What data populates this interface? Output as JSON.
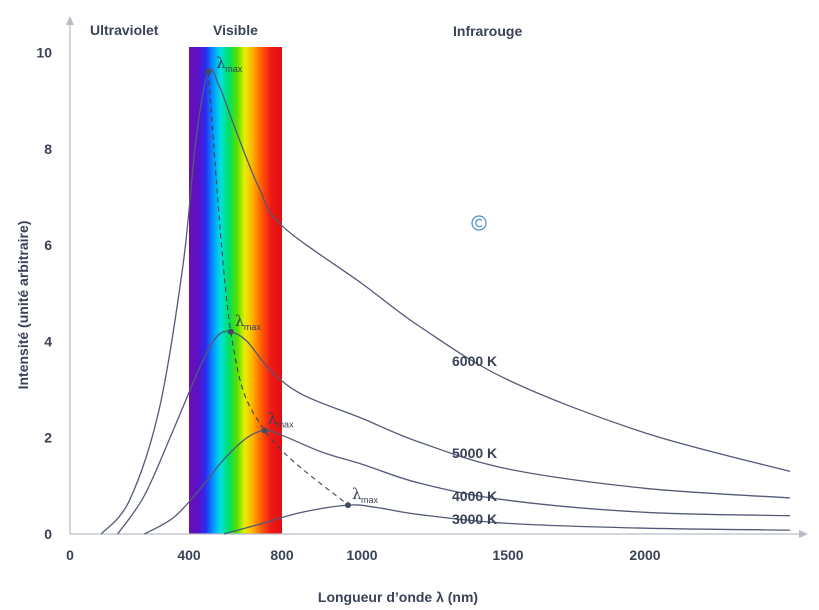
{
  "chart_data": {
    "type": "line",
    "title": "",
    "xlabel": "Longueur d’onde  λ (nm)",
    "ylabel": "Intensité (unité arbitraire)",
    "xlim": [
      0,
      2550
    ],
    "ylim": [
      0,
      10.5
    ],
    "x_ticks": [
      0,
      400,
      800,
      1000,
      1500,
      2000
    ],
    "x_tick_labels": [
      "0",
      "400",
      "800",
      "1000",
      "1500",
      "2000"
    ],
    "y_ticks": [
      0,
      2,
      4,
      6,
      8,
      10
    ],
    "y_tick_labels": [
      "0",
      "2",
      "4",
      "6",
      "8",
      "10"
    ],
    "regions": [
      {
        "label": "Ultraviolet"
      },
      {
        "label": "Visible",
        "range": [
          400,
          800
        ]
      },
      {
        "label": "Infrarouge"
      }
    ],
    "peak_label": "λ",
    "peak_sub": "max",
    "series": [
      {
        "name": "6000 K",
        "peak_x": 483,
        "peak_y": 9.6,
        "x": [
          105,
          200,
          300,
          380,
          430,
          483,
          530,
          600,
          700,
          800,
          1000,
          1200,
          1500,
          2000,
          2550
        ],
        "y": [
          0,
          0.7,
          2.6,
          5.6,
          8.2,
          9.6,
          9.3,
          8.4,
          7.2,
          6.4,
          5.2,
          4.3,
          3.2,
          2.1,
          1.3
        ]
      },
      {
        "name": "5000 K",
        "peak_x": 580,
        "peak_y": 4.2,
        "x": [
          160,
          250,
          350,
          450,
          520,
          580,
          650,
          750,
          850,
          1000,
          1200,
          1500,
          2000,
          2550
        ],
        "y": [
          0,
          0.8,
          2.2,
          3.5,
          4.1,
          4.2,
          4.0,
          3.4,
          2.9,
          2.4,
          1.9,
          1.35,
          0.95,
          0.75
        ]
      },
      {
        "name": "4000 K",
        "peak_x": 725,
        "peak_y": 2.15,
        "x": [
          250,
          350,
          450,
          550,
          650,
          725,
          800,
          900,
          1000,
          1200,
          1500,
          2000,
          2550
        ],
        "y": [
          0,
          0.35,
          0.95,
          1.55,
          2.0,
          2.15,
          2.05,
          1.7,
          1.45,
          1.05,
          0.7,
          0.45,
          0.38
        ]
      },
      {
        "name": "3000 K",
        "peak_x": 965,
        "peak_y": 0.6,
        "x": [
          550,
          700,
          850,
          965,
          1050,
          1200,
          1500,
          2000,
          2550
        ],
        "y": [
          0,
          0.2,
          0.45,
          0.6,
          0.55,
          0.4,
          0.22,
          0.12,
          0.08
        ]
      }
    ],
    "grid": false,
    "colors": {
      "curve": "#535a77",
      "axis": "#b8bcc8",
      "text": "#3a4256",
      "dashed": "#3a4256",
      "peak_dot": "#444a60"
    }
  }
}
